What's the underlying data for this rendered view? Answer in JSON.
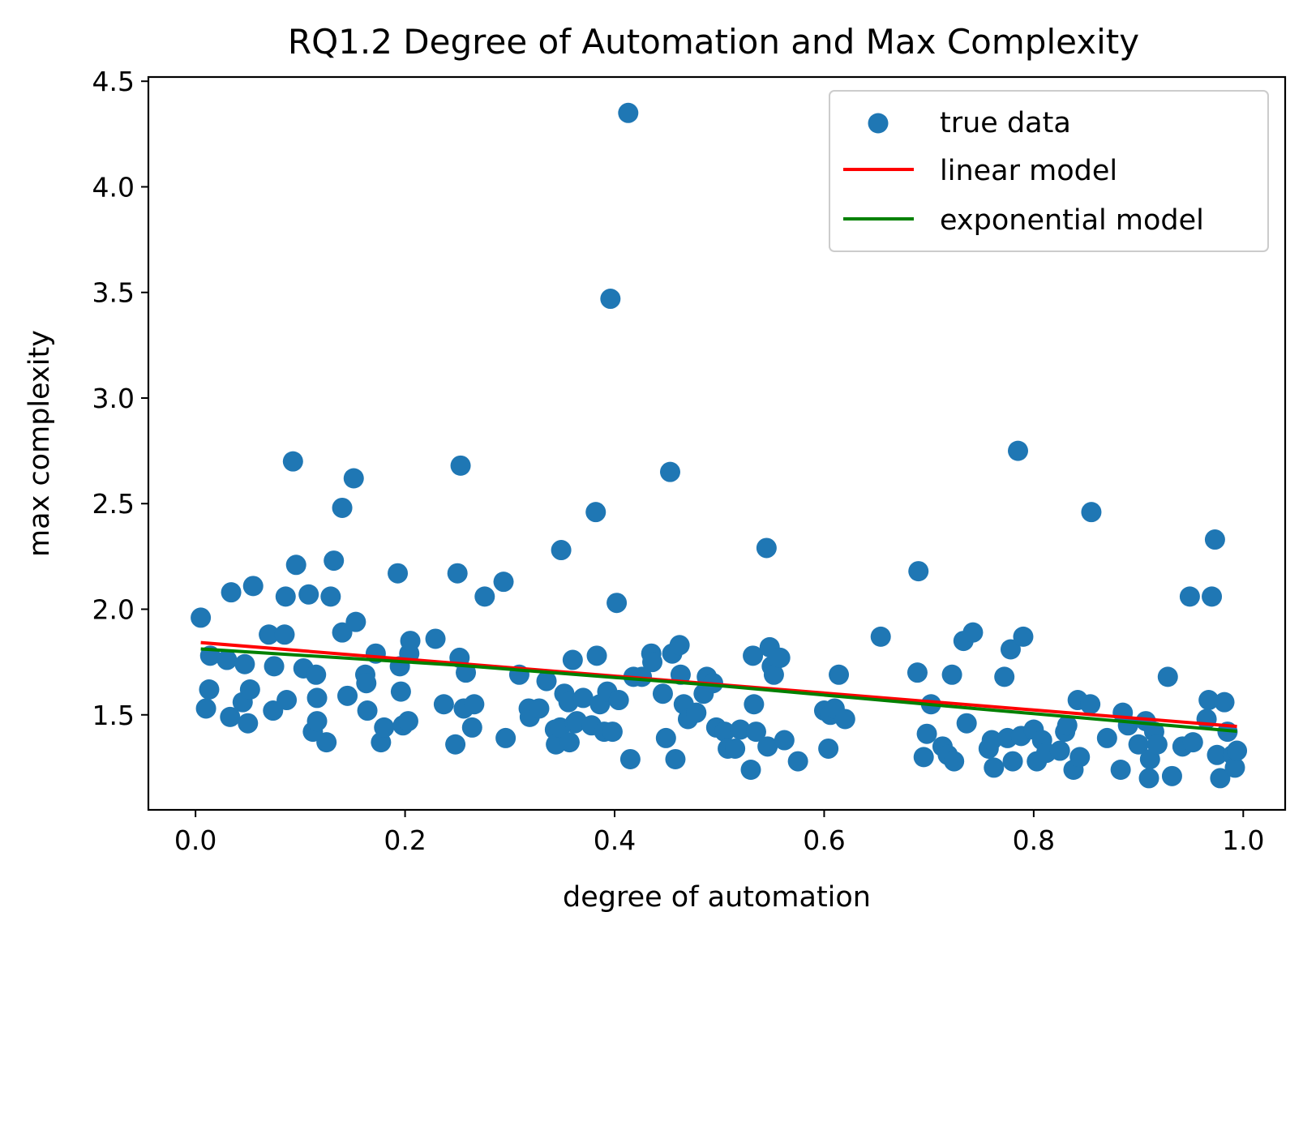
{
  "chart_data": {
    "type": "scatter",
    "title": "RQ1.2 Degree of Automation and Max Complexity",
    "xlabel": "degree of automation",
    "ylabel": "max complexity",
    "xlim": [
      -0.045,
      1.04
    ],
    "ylim": [
      1.05,
      4.52
    ],
    "xticks": [
      {
        "value": 0.0,
        "label": "0.0"
      },
      {
        "value": 0.2,
        "label": "0.2"
      },
      {
        "value": 0.4,
        "label": "0.4"
      },
      {
        "value": 0.6,
        "label": "0.6"
      },
      {
        "value": 0.8,
        "label": "0.8"
      },
      {
        "value": 1.0,
        "label": "1.0"
      }
    ],
    "yticks": [
      {
        "value": 1.5,
        "label": "1.5"
      },
      {
        "value": 2.0,
        "label": "2.0"
      },
      {
        "value": 2.5,
        "label": "2.5"
      },
      {
        "value": 3.0,
        "label": "3.0"
      },
      {
        "value": 3.5,
        "label": "3.5"
      },
      {
        "value": 4.0,
        "label": "4.0"
      },
      {
        "value": 4.5,
        "label": "4.5"
      }
    ],
    "grid": false,
    "legend_position": "top-right",
    "series": [
      {
        "name": "true data",
        "kind": "scatter",
        "color": "#1f77b4",
        "points": [
          [
            0.005,
            1.96
          ],
          [
            0.01,
            1.53
          ],
          [
            0.013,
            1.62
          ],
          [
            0.014,
            1.78
          ],
          [
            0.03,
            1.76
          ],
          [
            0.033,
            1.49
          ],
          [
            0.034,
            2.08
          ],
          [
            0.045,
            1.56
          ],
          [
            0.047,
            1.74
          ],
          [
            0.05,
            1.46
          ],
          [
            0.052,
            1.62
          ],
          [
            0.055,
            2.11
          ],
          [
            0.07,
            1.88
          ],
          [
            0.074,
            1.52
          ],
          [
            0.075,
            1.73
          ],
          [
            0.085,
            1.88
          ],
          [
            0.086,
            2.06
          ],
          [
            0.087,
            1.57
          ],
          [
            0.093,
            2.7
          ],
          [
            0.096,
            2.21
          ],
          [
            0.103,
            1.72
          ],
          [
            0.108,
            2.07
          ],
          [
            0.112,
            1.42
          ],
          [
            0.115,
            1.69
          ],
          [
            0.116,
            1.58
          ],
          [
            0.116,
            1.47
          ],
          [
            0.125,
            1.37
          ],
          [
            0.129,
            2.06
          ],
          [
            0.132,
            2.23
          ],
          [
            0.14,
            2.48
          ],
          [
            0.14,
            1.89
          ],
          [
            0.145,
            1.59
          ],
          [
            0.151,
            2.62
          ],
          [
            0.153,
            1.94
          ],
          [
            0.162,
            1.69
          ],
          [
            0.163,
            1.65
          ],
          [
            0.164,
            1.52
          ],
          [
            0.172,
            1.79
          ],
          [
            0.177,
            1.37
          ],
          [
            0.18,
            1.44
          ],
          [
            0.193,
            2.17
          ],
          [
            0.195,
            1.73
          ],
          [
            0.196,
            1.61
          ],
          [
            0.198,
            1.45
          ],
          [
            0.203,
            1.47
          ],
          [
            0.204,
            1.79
          ],
          [
            0.205,
            1.85
          ],
          [
            0.229,
            1.86
          ],
          [
            0.237,
            1.55
          ],
          [
            0.248,
            1.36
          ],
          [
            0.25,
            2.17
          ],
          [
            0.252,
            1.77
          ],
          [
            0.253,
            2.68
          ],
          [
            0.256,
            1.53
          ],
          [
            0.258,
            1.7
          ],
          [
            0.264,
            1.44
          ],
          [
            0.266,
            1.55
          ],
          [
            0.276,
            2.06
          ],
          [
            0.294,
            2.13
          ],
          [
            0.296,
            1.39
          ],
          [
            0.309,
            1.69
          ],
          [
            0.318,
            1.53
          ],
          [
            0.319,
            1.49
          ],
          [
            0.328,
            1.53
          ],
          [
            0.335,
            1.66
          ],
          [
            0.343,
            1.43
          ],
          [
            0.344,
            1.36
          ],
          [
            0.348,
            1.44
          ],
          [
            0.349,
            2.28
          ],
          [
            0.352,
            1.6
          ],
          [
            0.356,
            1.56
          ],
          [
            0.357,
            1.37
          ],
          [
            0.36,
            1.76
          ],
          [
            0.362,
            1.46
          ],
          [
            0.364,
            1.47
          ],
          [
            0.37,
            1.58
          ],
          [
            0.378,
            1.45
          ],
          [
            0.382,
            2.46
          ],
          [
            0.383,
            1.78
          ],
          [
            0.386,
            1.55
          ],
          [
            0.39,
            1.42
          ],
          [
            0.393,
            1.61
          ],
          [
            0.396,
            3.47
          ],
          [
            0.398,
            1.42
          ],
          [
            0.402,
            2.03
          ],
          [
            0.404,
            1.57
          ],
          [
            0.413,
            4.35
          ],
          [
            0.415,
            1.29
          ],
          [
            0.418,
            1.68
          ],
          [
            0.426,
            1.68
          ],
          [
            0.435,
            1.79
          ],
          [
            0.436,
            1.75
          ],
          [
            0.446,
            1.6
          ],
          [
            0.449,
            1.39
          ],
          [
            0.453,
            2.65
          ],
          [
            0.455,
            1.79
          ],
          [
            0.458,
            1.29
          ],
          [
            0.462,
            1.83
          ],
          [
            0.463,
            1.69
          ],
          [
            0.466,
            1.55
          ],
          [
            0.47,
            1.48
          ],
          [
            0.478,
            1.51
          ],
          [
            0.485,
            1.6
          ],
          [
            0.488,
            1.68
          ],
          [
            0.494,
            1.65
          ],
          [
            0.497,
            1.44
          ],
          [
            0.505,
            1.42
          ],
          [
            0.508,
            1.34
          ],
          [
            0.515,
            1.34
          ],
          [
            0.52,
            1.43
          ],
          [
            0.53,
            1.24
          ],
          [
            0.532,
            1.78
          ],
          [
            0.533,
            1.55
          ],
          [
            0.535,
            1.42
          ],
          [
            0.545,
            2.29
          ],
          [
            0.546,
            1.35
          ],
          [
            0.548,
            1.82
          ],
          [
            0.55,
            1.73
          ],
          [
            0.552,
            1.69
          ],
          [
            0.558,
            1.77
          ],
          [
            0.562,
            1.38
          ],
          [
            0.575,
            1.28
          ],
          [
            0.6,
            1.52
          ],
          [
            0.604,
            1.34
          ],
          [
            0.606,
            1.5
          ],
          [
            0.61,
            1.53
          ],
          [
            0.614,
            1.69
          ],
          [
            0.62,
            1.48
          ],
          [
            0.654,
            1.87
          ],
          [
            0.689,
            1.7
          ],
          [
            0.69,
            2.18
          ],
          [
            0.695,
            1.3
          ],
          [
            0.698,
            1.41
          ],
          [
            0.702,
            1.55
          ],
          [
            0.713,
            1.35
          ],
          [
            0.718,
            1.31
          ],
          [
            0.722,
            1.69
          ],
          [
            0.724,
            1.28
          ],
          [
            0.733,
            1.85
          ],
          [
            0.736,
            1.46
          ],
          [
            0.742,
            1.89
          ],
          [
            0.757,
            1.34
          ],
          [
            0.76,
            1.38
          ],
          [
            0.762,
            1.25
          ],
          [
            0.772,
            1.68
          ],
          [
            0.775,
            1.39
          ],
          [
            0.778,
            1.81
          ],
          [
            0.78,
            1.28
          ],
          [
            0.785,
            2.75
          ],
          [
            0.788,
            1.4
          ],
          [
            0.79,
            1.87
          ],
          [
            0.8,
            1.43
          ],
          [
            0.803,
            1.28
          ],
          [
            0.808,
            1.38
          ],
          [
            0.812,
            1.32
          ],
          [
            0.825,
            1.33
          ],
          [
            0.83,
            1.42
          ],
          [
            0.832,
            1.45
          ],
          [
            0.838,
            1.24
          ],
          [
            0.842,
            1.57
          ],
          [
            0.844,
            1.3
          ],
          [
            0.854,
            1.55
          ],
          [
            0.855,
            2.46
          ],
          [
            0.87,
            1.39
          ],
          [
            0.883,
            1.24
          ],
          [
            0.885,
            1.51
          ],
          [
            0.89,
            1.45
          ],
          [
            0.9,
            1.36
          ],
          [
            0.907,
            1.47
          ],
          [
            0.91,
            1.2
          ],
          [
            0.911,
            1.29
          ],
          [
            0.915,
            1.42
          ],
          [
            0.918,
            1.36
          ],
          [
            0.928,
            1.68
          ],
          [
            0.932,
            1.21
          ],
          [
            0.942,
            1.35
          ],
          [
            0.949,
            2.06
          ],
          [
            0.952,
            1.37
          ],
          [
            0.965,
            1.48
          ],
          [
            0.967,
            1.57
          ],
          [
            0.97,
            2.06
          ],
          [
            0.973,
            2.33
          ],
          [
            0.975,
            1.31
          ],
          [
            0.978,
            1.2
          ],
          [
            0.982,
            1.56
          ],
          [
            0.985,
            1.42
          ],
          [
            0.99,
            1.31
          ],
          [
            0.992,
            1.25
          ],
          [
            0.994,
            1.33
          ]
        ]
      },
      {
        "name": "linear model",
        "kind": "line",
        "color": "#ff0000",
        "x": [
          0.005,
          0.994
        ],
        "y": [
          1.842,
          1.445
        ]
      },
      {
        "name": "exponential model",
        "kind": "line",
        "color": "#008000",
        "x": [
          0.005,
          0.25,
          0.5,
          0.75,
          0.994
        ],
        "y": [
          1.812,
          1.735,
          1.638,
          1.527,
          1.422
        ]
      }
    ]
  }
}
